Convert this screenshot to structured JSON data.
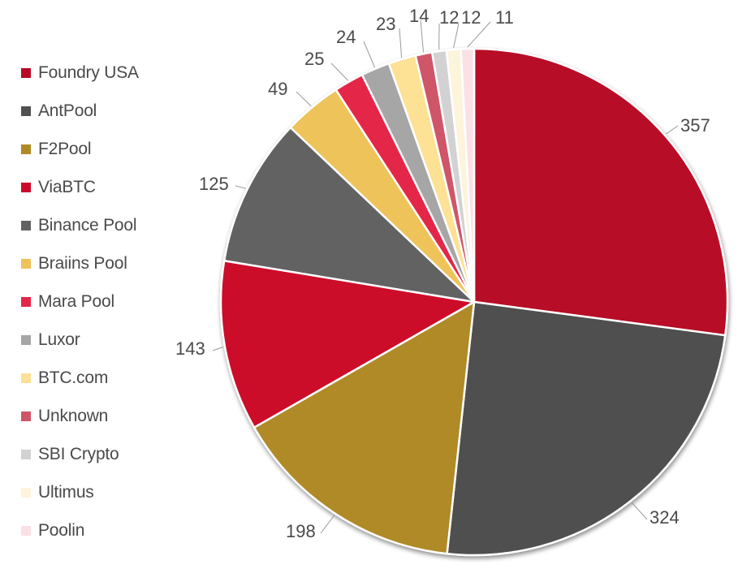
{
  "chart_data": {
    "type": "pie",
    "title": "",
    "categories": [
      "Foundry USA",
      "AntPool",
      "F2Pool",
      "ViaBTC",
      "Binance Pool",
      "Braiins Pool",
      "Mara Pool",
      "Luxor",
      "BTC.com",
      "Unknown",
      "SBI Crypto",
      "Ultimus",
      "Poolin"
    ],
    "values": [
      357,
      324,
      198,
      143,
      125,
      49,
      25,
      24,
      23,
      14,
      12,
      12,
      11
    ],
    "colors": [
      "#b70a27",
      "#505050",
      "#b08a25",
      "#cc0a2c",
      "#626262",
      "#eec35a",
      "#e4274a",
      "#a6a6a6",
      "#fde194",
      "#cf5568",
      "#d2d2d2",
      "#fdf4dc",
      "#fbe1e6"
    ],
    "legend_position": "left",
    "start_angle": "12 o'clock",
    "direction": "clockwise",
    "data_labels": true
  },
  "legend": {
    "items": [
      {
        "label": "Foundry USA"
      },
      {
        "label": "AntPool"
      },
      {
        "label": "F2Pool"
      },
      {
        "label": "ViaBTC"
      },
      {
        "label": "Binance Pool"
      },
      {
        "label": "Braiins Pool"
      },
      {
        "label": "Mara Pool"
      },
      {
        "label": "Luxor"
      },
      {
        "label": "BTC.com"
      },
      {
        "label": "Unknown"
      },
      {
        "label": "SBI Crypto"
      },
      {
        "label": "Ultimus"
      },
      {
        "label": "Poolin"
      }
    ]
  }
}
